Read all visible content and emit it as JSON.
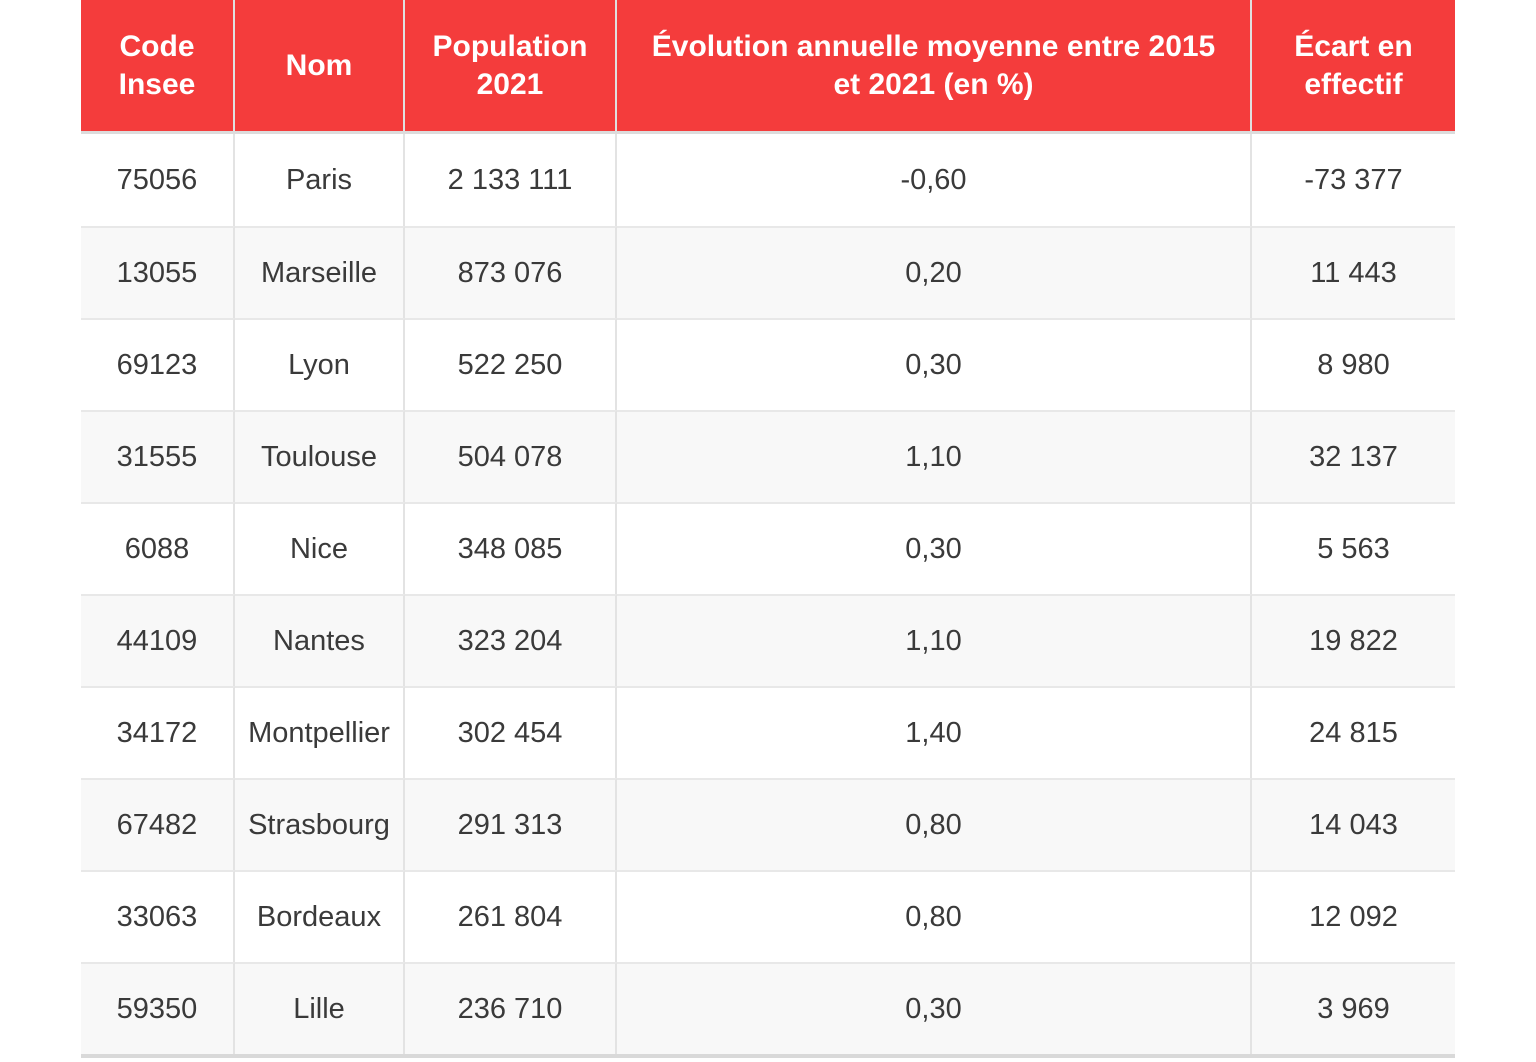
{
  "colors": {
    "header_bg": "#f43c3c",
    "header_text": "#ffffff",
    "row_bg": "#ffffff",
    "row_alt_bg": "#f8f8f8",
    "cell_border": "#e3e3e3",
    "bottom_border": "#d9d9d9",
    "body_text": "#3a3a3a"
  },
  "chart_data": {
    "type": "table",
    "columns": [
      "Code Insee",
      "Nom",
      "Population 2021",
      "Évolution annuelle moyenne entre 2015 et 2021 (en %)",
      "Écart en effectif"
    ],
    "rows": [
      {
        "code_insee": "75056",
        "nom": "Paris",
        "population_2021": "2 133 111",
        "evolution_pct": "-0,60",
        "ecart_effectif": "-73 377"
      },
      {
        "code_insee": "13055",
        "nom": "Marseille",
        "population_2021": "873 076",
        "evolution_pct": "0,20",
        "ecart_effectif": "11 443"
      },
      {
        "code_insee": "69123",
        "nom": "Lyon",
        "population_2021": "522 250",
        "evolution_pct": "0,30",
        "ecart_effectif": "8 980"
      },
      {
        "code_insee": "31555",
        "nom": "Toulouse",
        "population_2021": "504 078",
        "evolution_pct": "1,10",
        "ecart_effectif": "32 137"
      },
      {
        "code_insee": "6088",
        "nom": "Nice",
        "population_2021": "348 085",
        "evolution_pct": "0,30",
        "ecart_effectif": "5 563"
      },
      {
        "code_insee": "44109",
        "nom": "Nantes",
        "population_2021": "323 204",
        "evolution_pct": "1,10",
        "ecart_effectif": "19 822"
      },
      {
        "code_insee": "34172",
        "nom": "Montpellier",
        "population_2021": "302 454",
        "evolution_pct": "1,40",
        "ecart_effectif": "24 815"
      },
      {
        "code_insee": "67482",
        "nom": "Strasbourg",
        "population_2021": "291 313",
        "evolution_pct": "0,80",
        "ecart_effectif": "14 043"
      },
      {
        "code_insee": "33063",
        "nom": "Bordeaux",
        "population_2021": "261 804",
        "evolution_pct": "0,80",
        "ecart_effectif": "12 092"
      },
      {
        "code_insee": "59350",
        "nom": "Lille",
        "population_2021": "236 710",
        "evolution_pct": "0,30",
        "ecart_effectif": "3 969"
      }
    ]
  }
}
